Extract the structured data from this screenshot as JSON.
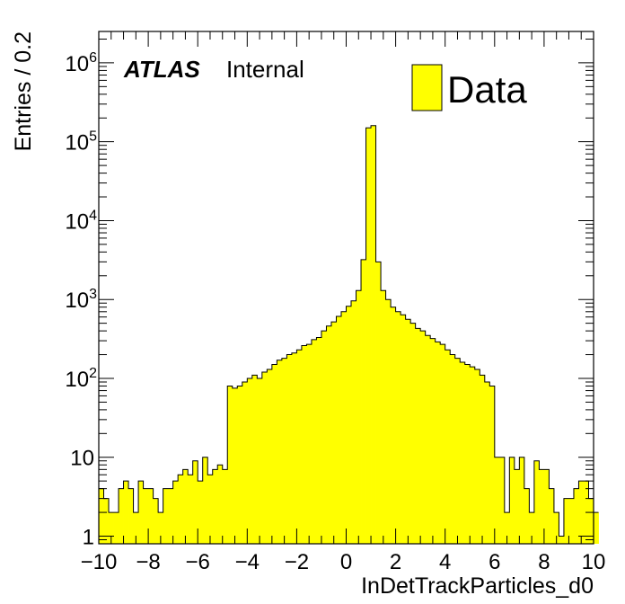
{
  "chart_data": {
    "type": "bar",
    "histogram": true,
    "xlabel": "InDetTrackParticles_d0",
    "ylabel": "Entries / 0.2",
    "xlim": [
      -10,
      10
    ],
    "ylim": [
      0.8,
      2500000
    ],
    "log_y": true,
    "bin_width": 0.2,
    "x_ticks": [
      "−10",
      "−8",
      "−6",
      "−4",
      "−2",
      "0",
      "2",
      "4",
      "6",
      "8",
      "10"
    ],
    "y_ticks": [
      {
        "base": "1",
        "exp": ""
      },
      {
        "base": "10",
        "exp": ""
      },
      {
        "base": "10",
        "exp": "2"
      },
      {
        "base": "10",
        "exp": "3"
      },
      {
        "base": "10",
        "exp": "4"
      },
      {
        "base": "10",
        "exp": "5"
      },
      {
        "base": "10",
        "exp": "6"
      }
    ],
    "series": [
      {
        "name": "Data",
        "color": "#ffff00",
        "values": [
          4,
          3,
          2,
          2,
          4,
          5,
          4,
          2,
          5,
          4,
          4,
          3,
          2,
          4,
          4,
          5,
          6,
          7,
          6,
          9,
          5,
          10,
          6,
          7,
          8,
          7,
          80,
          75,
          80,
          90,
          100,
          110,
          100,
          120,
          130,
          150,
          170,
          180,
          200,
          210,
          230,
          260,
          270,
          310,
          330,
          400,
          460,
          520,
          610,
          700,
          820,
          960,
          1300,
          3200,
          150000,
          160000,
          3000,
          1300,
          1000,
          800,
          700,
          640,
          560,
          500,
          430,
          400,
          350,
          320,
          290,
          270,
          230,
          200,
          180,
          160,
          150,
          140,
          130,
          110,
          90,
          80,
          10,
          10,
          2,
          10,
          7,
          10,
          4,
          2,
          9,
          7,
          7,
          4,
          2,
          1,
          3,
          3,
          4,
          5,
          5,
          3,
          2
        ]
      }
    ],
    "legend_position": "top-right",
    "legend_label": "Data",
    "annotation_brand": "ATLAS",
    "annotation_label": "Internal",
    "fill_color": "#ffff00",
    "line_color": "#000000"
  }
}
